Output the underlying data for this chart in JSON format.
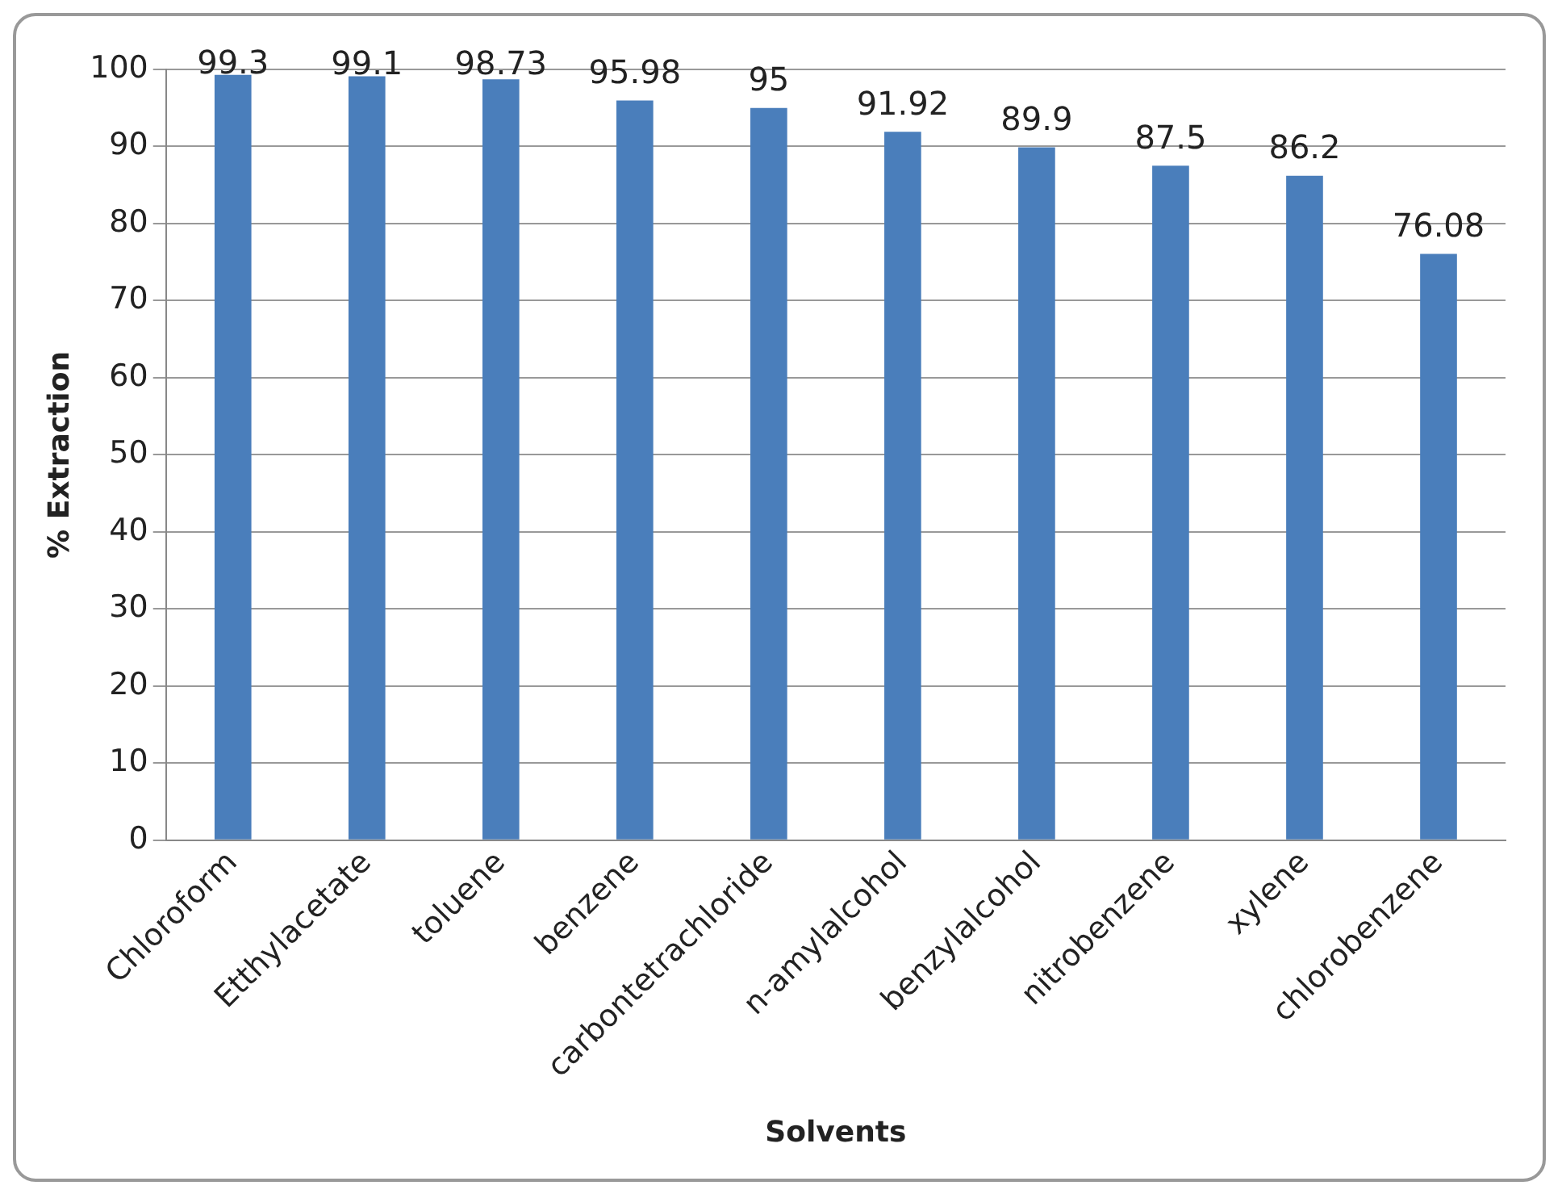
{
  "chart_data": {
    "type": "bar",
    "xlabel": "Solvents",
    "ylabel": "% Extraction",
    "categories": [
      "Chloroform",
      "Etthylacetate",
      "toluene",
      "benzene",
      "carbontetrachloride",
      "n-amylalcohol",
      "benzylalcohol",
      "nitrobenzene",
      "xylene",
      "chlorobenzene"
    ],
    "values": [
      99.3,
      99.1,
      98.73,
      95.98,
      95,
      91.92,
      89.9,
      87.5,
      86.2,
      76.08
    ],
    "color": "#4a7ebb",
    "ylim": [
      0,
      100
    ],
    "yticks": [
      0,
      10,
      20,
      30,
      40,
      50,
      60,
      70,
      80,
      90,
      100
    ],
    "grid": "y",
    "data_labels": true,
    "legend": false
  }
}
